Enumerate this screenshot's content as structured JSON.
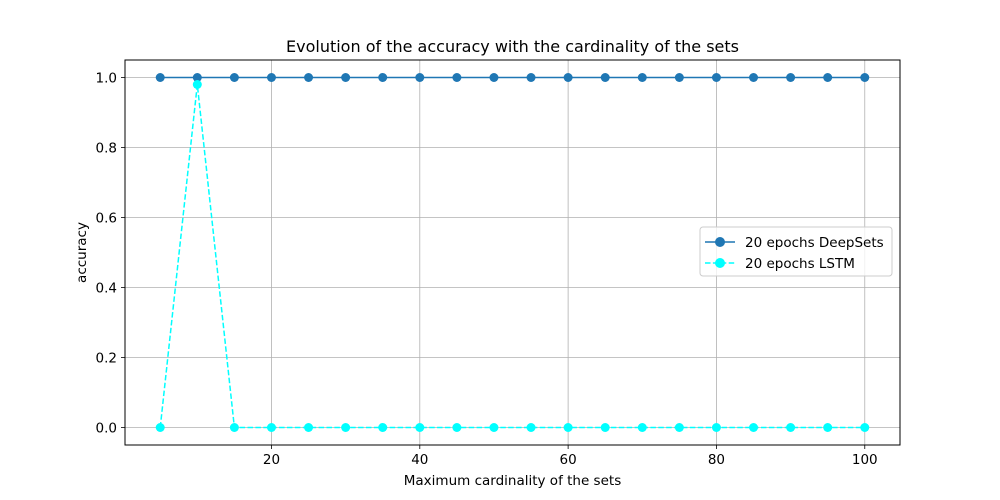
{
  "chart_data": {
    "type": "line",
    "title": "Evolution of the accuracy with the cardinality of the sets",
    "xlabel": "Maximum cardinality of the sets",
    "ylabel": "accuracy",
    "x": [
      5,
      10,
      15,
      20,
      25,
      30,
      35,
      40,
      45,
      50,
      55,
      60,
      65,
      70,
      75,
      80,
      85,
      90,
      95,
      100
    ],
    "xlim": [
      0.25,
      104.75
    ],
    "ylim": [
      -0.05,
      1.05
    ],
    "xticks": [
      20,
      40,
      60,
      80,
      100
    ],
    "yticks": [
      0.0,
      0.2,
      0.4,
      0.6,
      0.8,
      1.0
    ],
    "xtick_labels": [
      "20",
      "40",
      "60",
      "80",
      "100"
    ],
    "ytick_labels": [
      "0.0",
      "0.2",
      "0.4",
      "0.6",
      "0.8",
      "1.0"
    ],
    "grid": true,
    "legend_position": "center-right",
    "series": [
      {
        "name": "20 epochs DeepSets",
        "color": "#1f77b4",
        "linestyle": "solid",
        "marker": "circle",
        "values": [
          1,
          1,
          1,
          1,
          1,
          1,
          1,
          1,
          1,
          1,
          1,
          1,
          1,
          1,
          1,
          1,
          1,
          1,
          1,
          1
        ]
      },
      {
        "name": "20 epochs LSTM",
        "color": "#00ffff",
        "linestyle": "dashed",
        "marker": "circle",
        "values": [
          0,
          0.98,
          0,
          0,
          0,
          0,
          0,
          0,
          0,
          0,
          0,
          0,
          0,
          0,
          0,
          0,
          0,
          0,
          0,
          0
        ]
      }
    ]
  }
}
